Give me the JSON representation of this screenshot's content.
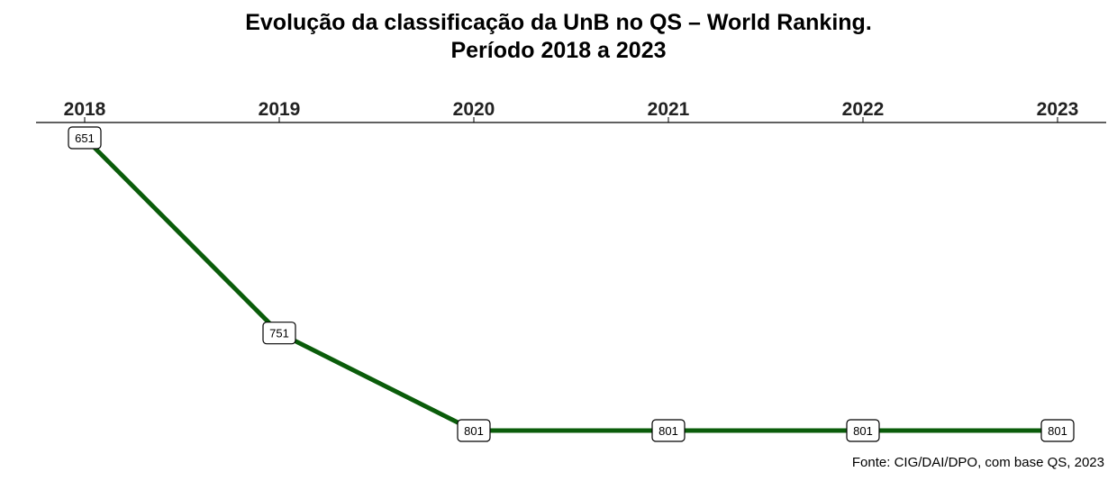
{
  "title_line1": "Evolução da classificação da UnB no QS – World Ranking.",
  "title_line2": "Período 2018 a 2023",
  "source": "Fonte: CIG/DAI/DPO, com base QS, 2023",
  "colors": {
    "line": "#0a5c0a",
    "axis": "#000000",
    "label_bg": "#ffffff"
  },
  "chart_data": {
    "type": "line",
    "title": "Evolução da classificação da UnB no QS – World Ranking. Período 2018 a 2023",
    "x_axis_position": "top",
    "y_reversed": true,
    "x": [
      "2018",
      "2019",
      "2020",
      "2021",
      "2022",
      "2023"
    ],
    "values": [
      651,
      751,
      801,
      801,
      801,
      801
    ],
    "data_labels": [
      "651",
      "751",
      "801",
      "801",
      "801",
      "801"
    ],
    "ylim": [
      651,
      801
    ],
    "grid": false
  }
}
